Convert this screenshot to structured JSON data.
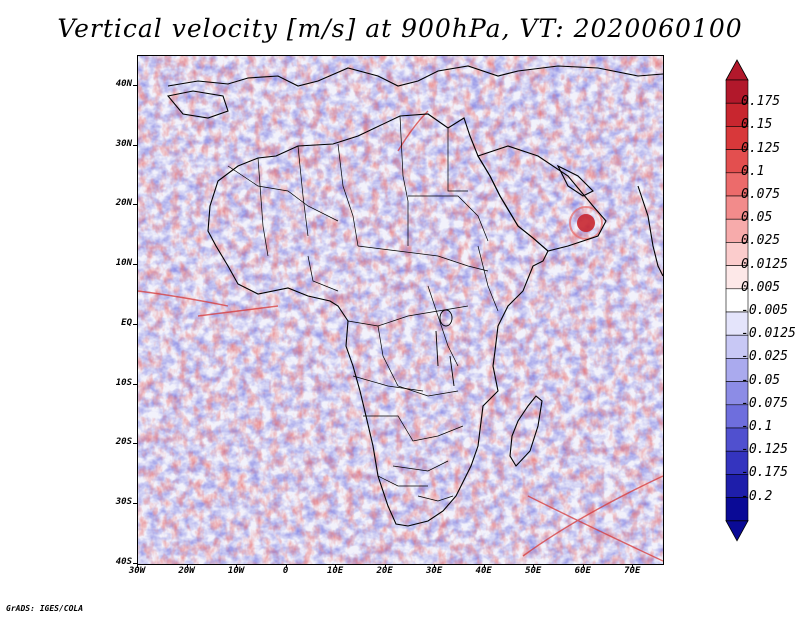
{
  "title": "Vertical velocity [m/s] at 900hPa, VT: 2020060100",
  "credit": "GrADS: IGES/COLA",
  "map": {
    "lat_labels": [
      "40N",
      "30N",
      "20N",
      "10N",
      "EQ",
      "10S",
      "20S",
      "30S",
      "40S"
    ],
    "lat_values": [
      40,
      30,
      20,
      10,
      0,
      -10,
      -20,
      -30,
      -40
    ],
    "lon_labels": [
      "30W",
      "20W",
      "10W",
      "0",
      "10E",
      "20E",
      "30E",
      "40E",
      "50E",
      "60E",
      "70E"
    ],
    "lon_values": [
      -30,
      -20,
      -10,
      0,
      10,
      20,
      30,
      40,
      50,
      60,
      70
    ],
    "lat_range": [
      -40,
      45
    ],
    "lon_range": [
      -30,
      76
    ]
  },
  "colorbar": {
    "labels": [
      "0.175",
      "0.15",
      "0.125",
      "0.1",
      "0.075",
      "0.05",
      "0.025",
      "0.0125",
      "0.005",
      "-0.005",
      "-0.0125",
      "-0.025",
      "-0.05",
      "-0.075",
      "-0.1",
      "-0.125",
      "-0.175",
      "-0.2"
    ],
    "colors": [
      "#b2182b",
      "#c8262f",
      "#d8383a",
      "#e34f4f",
      "#ec6b6b",
      "#f28b8b",
      "#f7abab",
      "#fbcccc",
      "#fde8e8",
      "#ffffff",
      "#e4e4fb",
      "#c8c8f5",
      "#aaaaee",
      "#8c8ce6",
      "#6e6edd",
      "#5050cf",
      "#3434bf",
      "#1e1eaa",
      "#0a0a96"
    ],
    "top_color": "#b2182b",
    "bottom_color": "#0a0a96"
  },
  "colors": {
    "field_light": "#f4f4fb",
    "upward": "#e86a6a",
    "downward": "#7a7ae0"
  }
}
